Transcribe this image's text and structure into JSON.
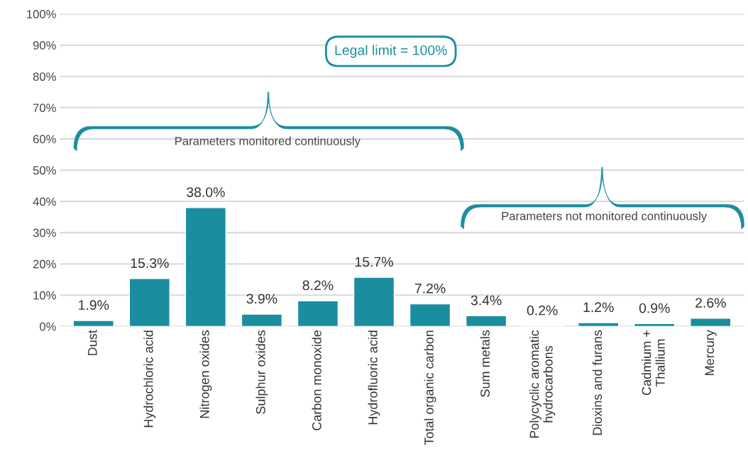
{
  "chart_data": {
    "type": "bar",
    "categories": [
      "Dust",
      "Hydrochloric acid",
      "Nitrogen oxides",
      "Sulphur oxides",
      "Carbon monoxide",
      "Hydrofluoric acid",
      "Total organic carbon",
      "Sum metals",
      "Polycyclic aromatic\nhydrocarbons",
      "Dioxins and furans",
      "Cadmium +\nThallium",
      "Mercury"
    ],
    "values": [
      1.9,
      15.3,
      38.0,
      3.9,
      8.2,
      15.7,
      7.2,
      3.4,
      0.2,
      1.2,
      0.9,
      2.6
    ],
    "value_labels": [
      "1.9%",
      "15.3%",
      "38.0%",
      "3.9%",
      "8.2%",
      "15.7%",
      "7.2%",
      "3.4%",
      "0.2%",
      "1.2%",
      "0.9%",
      "2.6%"
    ],
    "color": "#1a8e9f",
    "ylim": [
      0,
      100
    ],
    "yticks": [
      {
        "value": 0,
        "label": "0%"
      },
      {
        "value": 10,
        "label": "10%"
      },
      {
        "value": 20,
        "label": "20%"
      },
      {
        "value": 30,
        "label": "30%"
      },
      {
        "value": 40,
        "label": "40%"
      },
      {
        "value": 50,
        "label": "50%"
      },
      {
        "value": 60,
        "label": "60%"
      },
      {
        "value": 70,
        "label": "70%"
      },
      {
        "value": 80,
        "label": "80%"
      },
      {
        "value": 90,
        "label": "90%"
      },
      {
        "value": 100,
        "label": "100%"
      }
    ],
    "grid": "y",
    "annotations": [
      "Legal limit = 100%",
      "Parameters monitored continuously",
      "Parameters not monitored continuously"
    ]
  }
}
